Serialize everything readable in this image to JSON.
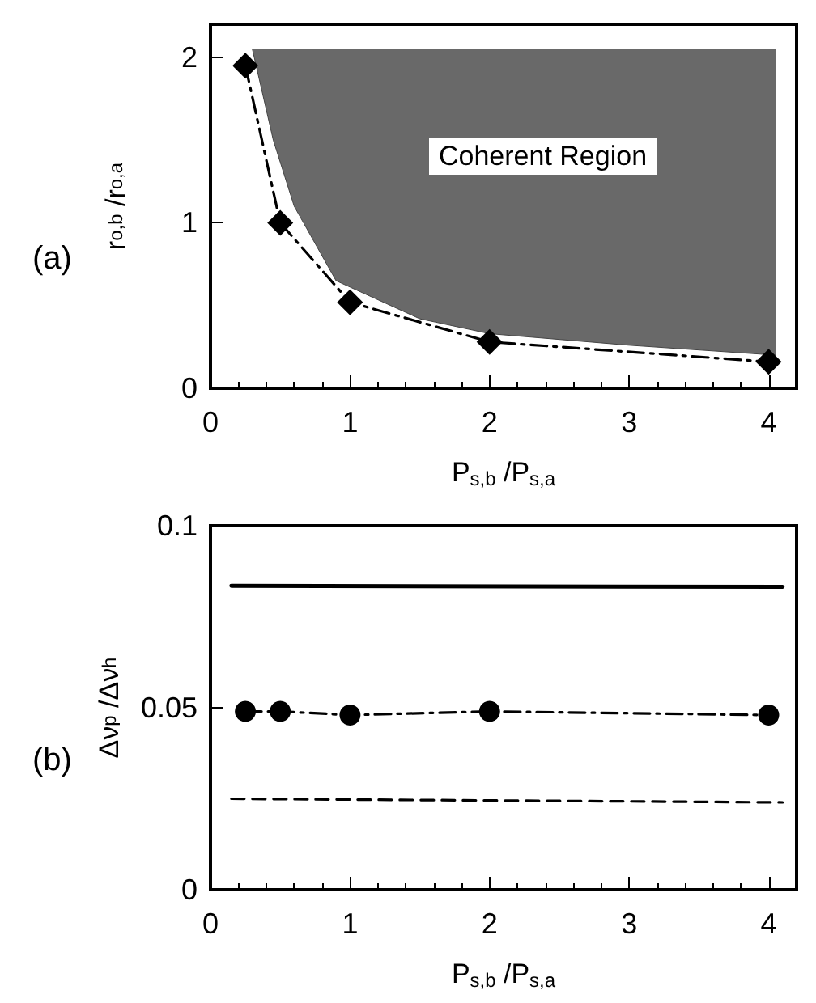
{
  "chart_data": [
    {
      "type": "line",
      "title": "(a)",
      "xlabel": "P$_{s,b}$ /P$_{s,a}$",
      "ylabel": "r$_{o,b}$ /r$_{o,a}$",
      "xlim": [
        0,
        4.2
      ],
      "xticks": [
        0,
        1,
        2,
        3,
        4
      ],
      "ylim": [
        0,
        2.2
      ],
      "yticks": [
        0,
        1,
        2
      ],
      "grid": false,
      "series": [
        {
          "color": "#444444",
          "marker": "none",
          "line_style": "solid",
          "x": [
            0.3,
            0.45,
            0.6,
            0.9,
            1.5,
            2,
            3,
            4.05
          ],
          "values": [
            2.05,
            1.5,
            1.1,
            0.65,
            0.42,
            0.33,
            0.26,
            0.2
          ],
          "lower": [
            2.05,
            1.5,
            1.1,
            0.65,
            0.42,
            0.33,
            0.26,
            0.2
          ],
          "upper": [
            2.05,
            2.05,
            2.05,
            2.05,
            2.05,
            2.05,
            2.05,
            2.05
          ]
        },
        {
          "color": "#000000",
          "marker": "diamond",
          "line_style": "dashdot",
          "x": [
            0.25,
            0.5,
            1,
            2,
            4
          ],
          "values": [
            1.95,
            1.0,
            0.52,
            0.28,
            0.16
          ]
        }
      ],
      "annotations": [
        "Coherent Region"
      ]
    },
    {
      "type": "line",
      "title": "(b)",
      "xlabel": "P$_{s,b}$ /P$_{s,a}$",
      "ylabel": "Δν$_{p}$ /Δν$_{h}$",
      "xlim": [
        0,
        4.2
      ],
      "xticks": [
        0,
        1,
        2,
        3,
        4
      ],
      "ylim": [
        0,
        0.1
      ],
      "yticks": [
        0,
        0.05,
        0.1
      ],
      "grid": false,
      "series": [
        {
          "color": "#000000",
          "marker": "none",
          "line_style": "solid",
          "x": [
            0.15,
            4.1
          ],
          "values": [
            0.0835,
            0.0832
          ]
        },
        {
          "color": "#000000",
          "marker": "circle",
          "line_style": "dashdot",
          "x": [
            0.25,
            0.5,
            1,
            2,
            4
          ],
          "values": [
            0.049,
            0.049,
            0.048,
            0.049,
            0.048
          ]
        },
        {
          "color": "#000000",
          "marker": "none",
          "line_style": "dashed",
          "x": [
            0.15,
            4.1
          ],
          "values": [
            0.025,
            0.024
          ]
        }
      ]
    }
  ]
}
